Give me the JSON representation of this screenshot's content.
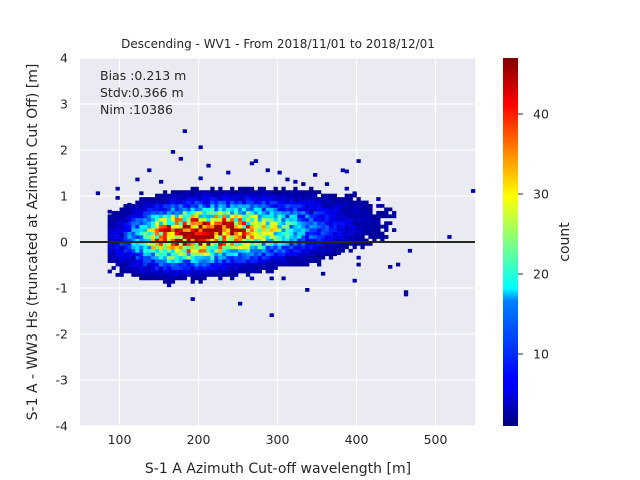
{
  "chart_data": {
    "type": "heatmap",
    "title": "Descending - WV1 - From 2018/11/01 to 2018/12/01",
    "xlabel": "S-1 A Azimuth Cut-off wavelength [m]",
    "ylabel": "S-1 A - WW3 Hs (truncated at Azimuth Cut Off) [m]",
    "xlim": [
      50,
      550
    ],
    "ylim": [
      -4,
      4
    ],
    "xticks": [
      100,
      200,
      300,
      400,
      500
    ],
    "yticks": [
      -4,
      -3,
      -2,
      -1,
      0,
      1,
      2,
      3,
      4
    ],
    "grid": true,
    "stats": [
      "Bias :0.213 m",
      "Stdv:0.366 m",
      "Nim :10386"
    ],
    "reference_line_y": 0,
    "colorbar": {
      "label": "count",
      "range": [
        1,
        47
      ],
      "ticks": [
        10,
        20,
        30,
        40
      ],
      "colormap": "jet"
    },
    "density_model": {
      "n_total": 10386,
      "center_x": 185,
      "center_y": 0.15,
      "sigma_x": 42,
      "sigma_y": 0.36,
      "peak_count": 47
    },
    "sparse_points": [
      [
        70,
        1.1
      ],
      [
        85,
        0.7
      ],
      [
        90,
        0.45
      ],
      [
        95,
        1.0
      ],
      [
        120,
        1.4
      ],
      [
        135,
        1.6
      ],
      [
        150,
        1.35
      ],
      [
        165,
        2.0
      ],
      [
        175,
        1.85
      ],
      [
        180,
        2.45
      ],
      [
        200,
        2.1
      ],
      [
        210,
        1.7
      ],
      [
        235,
        1.55
      ],
      [
        265,
        1.75
      ],
      [
        270,
        1.8
      ],
      [
        285,
        1.6
      ],
      [
        300,
        1.55
      ],
      [
        310,
        1.4
      ],
      [
        330,
        1.3
      ],
      [
        345,
        1.5
      ],
      [
        360,
        1.3
      ],
      [
        380,
        1.6
      ],
      [
        385,
        1.2
      ],
      [
        395,
        1.1
      ],
      [
        400,
        0.6
      ],
      [
        410,
        0.3
      ],
      [
        430,
        0.1
      ],
      [
        440,
        -0.5
      ],
      [
        460,
        -1.1
      ],
      [
        515,
        0.15
      ],
      [
        545,
        1.15
      ],
      [
        290,
        -1.55
      ],
      [
        250,
        -1.3
      ],
      [
        190,
        -1.2
      ],
      [
        335,
        -1.0
      ],
      [
        355,
        -0.65
      ],
      [
        375,
        -0.2
      ],
      [
        395,
        -0.8
      ],
      [
        320,
        0.95
      ],
      [
        340,
        0.7
      ],
      [
        365,
        0.8
      ],
      [
        305,
        -0.75
      ],
      [
        160,
        -0.9
      ],
      [
        140,
        -0.7
      ],
      [
        115,
        -0.3
      ],
      [
        100,
        0.2
      ],
      [
        100,
        -0.1
      ],
      [
        105,
        0.5
      ],
      [
        110,
        0.85
      ],
      [
        125,
        1.1
      ]
    ]
  }
}
